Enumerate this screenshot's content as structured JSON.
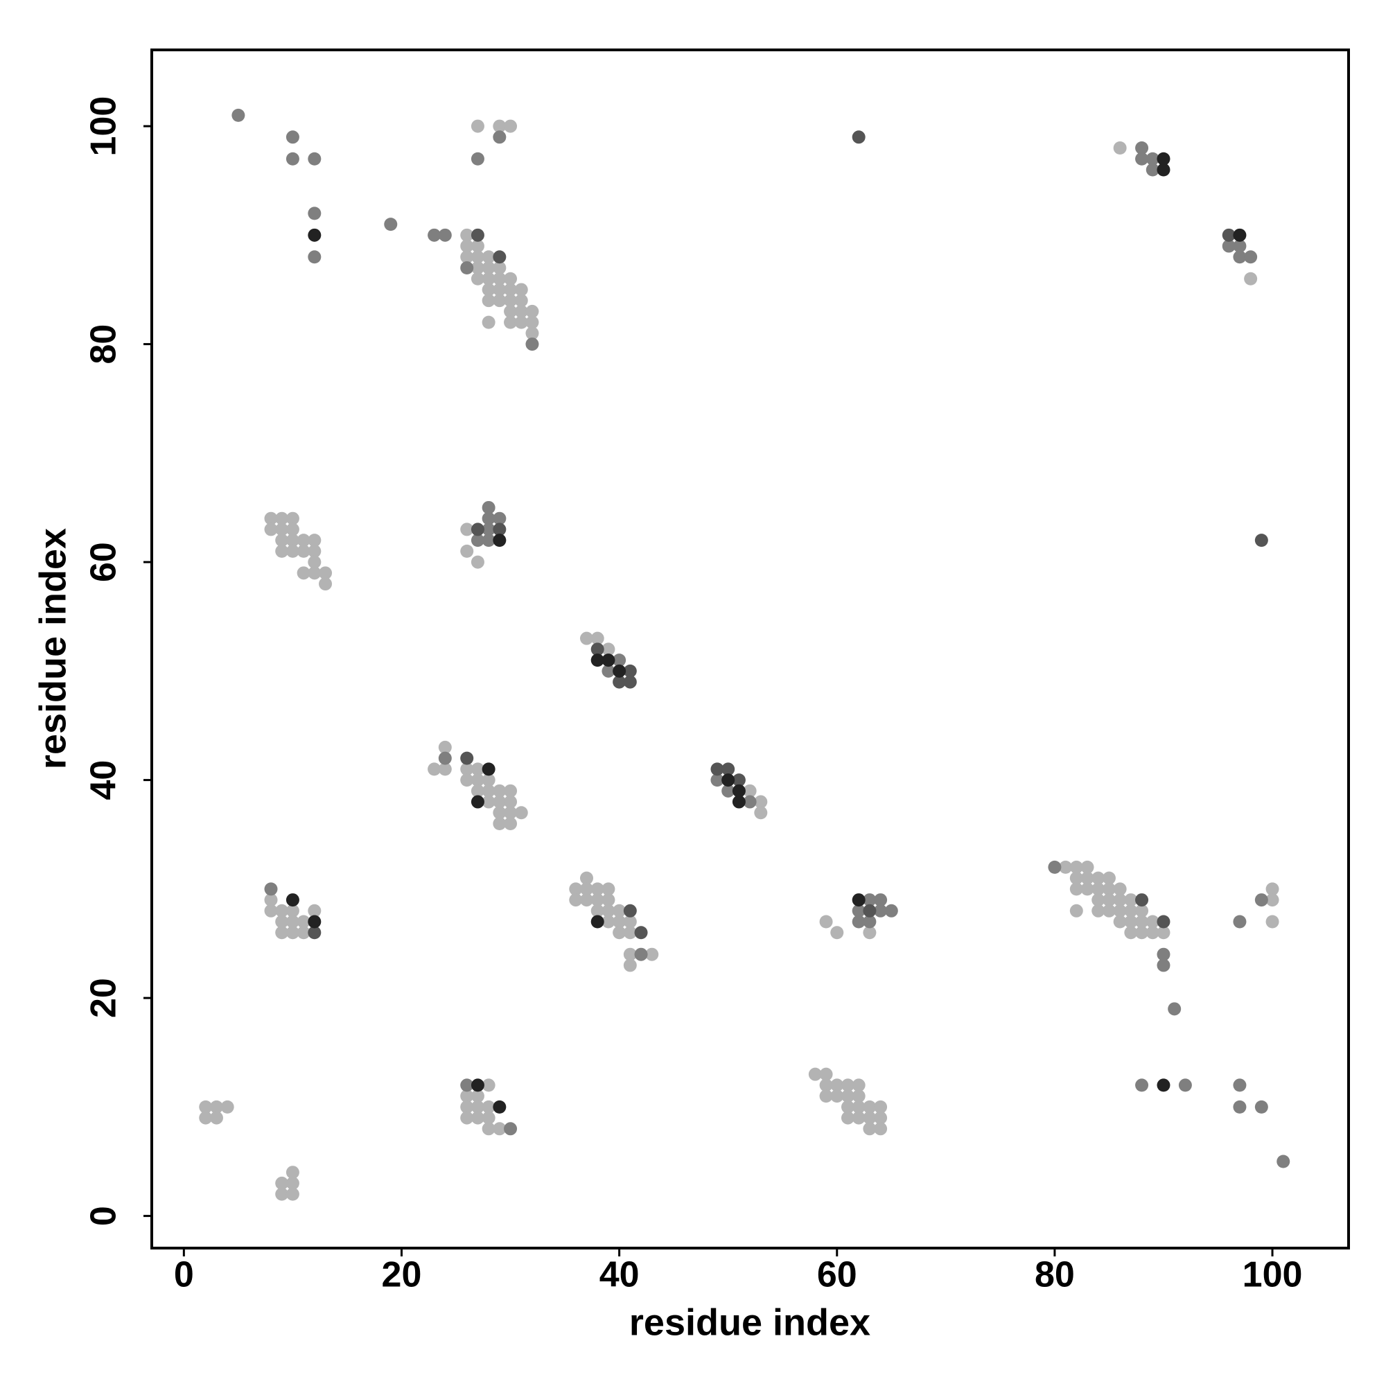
{
  "chart_data": {
    "type": "scatter",
    "xlabel": "residue index",
    "ylabel": "residue index",
    "xlim": [
      -2.95,
      107
    ],
    "ylim": [
      -2.95,
      107
    ],
    "xticks": [
      0,
      20,
      40,
      60,
      80,
      100
    ],
    "yticks": [
      0,
      20,
      40,
      60,
      80,
      100
    ],
    "series": [
      {
        "color": "#b3b3b3",
        "x": [
          27,
          29,
          30,
          86,
          98,
          26,
          26,
          27,
          26,
          27,
          28,
          27,
          28,
          29,
          27,
          28,
          29,
          30,
          28,
          29,
          30,
          31,
          28,
          29,
          30,
          31,
          30,
          31,
          32,
          28,
          30,
          31,
          32,
          32,
          8,
          9,
          10,
          8,
          9,
          10,
          9,
          10,
          11,
          12,
          9,
          10,
          11,
          12,
          12,
          11,
          12,
          13,
          13,
          26,
          26,
          27,
          37,
          38,
          39,
          23,
          24,
          24,
          26,
          27,
          26,
          27,
          28,
          27,
          28,
          29,
          30,
          28,
          29,
          30,
          29,
          30,
          31,
          29,
          30,
          52,
          53,
          53,
          8,
          8,
          9,
          10,
          9,
          10,
          11,
          12,
          9,
          10,
          11,
          37,
          36,
          37,
          38,
          39,
          36,
          37,
          38,
          39,
          38,
          39,
          40,
          39,
          40,
          41,
          40,
          41,
          41,
          43,
          41,
          59,
          60,
          63,
          81,
          82,
          83,
          82,
          83,
          84,
          85,
          82,
          83,
          84,
          85,
          86,
          84,
          85,
          86,
          87,
          82,
          84,
          85,
          86,
          87,
          88,
          86,
          87,
          88,
          89,
          87,
          88,
          89,
          90,
          100,
          100,
          100,
          2,
          3,
          4,
          2,
          3,
          9,
          10,
          10,
          9,
          10,
          28,
          26,
          27,
          26,
          27,
          28,
          26,
          27,
          28,
          28,
          29,
          58,
          59,
          59,
          60,
          61,
          62,
          59,
          60,
          61,
          62,
          61,
          62,
          63,
          64,
          61,
          62,
          63,
          64,
          63,
          64
        ],
        "y": [
          100,
          100,
          100,
          98,
          86,
          90,
          89,
          89,
          88,
          88,
          88,
          87,
          87,
          87,
          86,
          86,
          86,
          86,
          85,
          85,
          85,
          85,
          84,
          84,
          84,
          84,
          83,
          83,
          83,
          82,
          82,
          82,
          82,
          81,
          64,
          64,
          64,
          63,
          63,
          63,
          62,
          62,
          62,
          62,
          61,
          61,
          61,
          61,
          60,
          59,
          59,
          59,
          58,
          63,
          61,
          60,
          53,
          53,
          52,
          41,
          41,
          43,
          41,
          41,
          40,
          40,
          40,
          39,
          39,
          39,
          39,
          38,
          38,
          38,
          37,
          37,
          37,
          36,
          36,
          39,
          38,
          37,
          29,
          28,
          28,
          28,
          27,
          27,
          27,
          28,
          26,
          26,
          26,
          31,
          30,
          30,
          30,
          30,
          29,
          29,
          29,
          29,
          28,
          28,
          28,
          27,
          27,
          27,
          26,
          26,
          24,
          24,
          23,
          27,
          26,
          26,
          32,
          32,
          32,
          31,
          31,
          31,
          31,
          30,
          30,
          30,
          30,
          30,
          29,
          29,
          29,
          29,
          28,
          28,
          28,
          28,
          28,
          28,
          27,
          27,
          27,
          27,
          26,
          26,
          26,
          26,
          30,
          29,
          27,
          10,
          10,
          10,
          9,
          9,
          3,
          3,
          4,
          2,
          2,
          12,
          11,
          11,
          10,
          10,
          10,
          9,
          9,
          9,
          8,
          8,
          13,
          13,
          12,
          12,
          12,
          12,
          11,
          11,
          11,
          11,
          10,
          10,
          10,
          10,
          9,
          9,
          9,
          9,
          8,
          8
        ]
      },
      {
        "color": "#7f7f7f",
        "x": [
          5,
          10,
          10,
          12,
          12,
          12,
          19,
          23,
          24,
          29,
          27,
          26,
          32,
          88,
          88,
          89,
          89,
          96,
          97,
          97,
          98,
          28,
          28,
          29,
          28,
          27,
          28,
          40,
          39,
          24,
          49,
          50,
          52,
          8,
          42,
          63,
          64,
          62,
          64,
          65,
          62,
          63,
          80,
          90,
          90,
          91,
          97,
          99,
          30,
          26,
          88,
          92,
          97,
          97,
          99,
          101
        ],
        "y": [
          101,
          99,
          97,
          97,
          92,
          88,
          91,
          90,
          90,
          99,
          97,
          87,
          80,
          98,
          97,
          97,
          96,
          89,
          89,
          88,
          88,
          65,
          64,
          64,
          63,
          62,
          62,
          51,
          50,
          42,
          40,
          39,
          38,
          30,
          24,
          29,
          29,
          28,
          28,
          28,
          27,
          27,
          32,
          24,
          23,
          19,
          27,
          29,
          8,
          12,
          12,
          12,
          12,
          10,
          10,
          5
        ]
      },
      {
        "color": "#555555",
        "x": [
          27,
          29,
          62,
          96,
          99,
          27,
          29,
          38,
          41,
          40,
          41,
          26,
          49,
          50,
          51,
          12,
          41,
          42,
          63,
          88,
          90
        ],
        "y": [
          90,
          88,
          99,
          90,
          62,
          63,
          63,
          52,
          50,
          49,
          49,
          42,
          41,
          41,
          40,
          26,
          28,
          26,
          28,
          29,
          27
        ]
      },
      {
        "color": "#222222",
        "x": [
          12,
          90,
          90,
          97,
          29,
          38,
          39,
          40,
          28,
          27,
          50,
          51,
          51,
          10,
          12,
          38,
          62,
          27,
          29,
          90
        ],
        "y": [
          90,
          97,
          96,
          90,
          62,
          51,
          51,
          50,
          41,
          38,
          40,
          39,
          38,
          29,
          27,
          27,
          29,
          12,
          10,
          12
        ]
      }
    ]
  }
}
